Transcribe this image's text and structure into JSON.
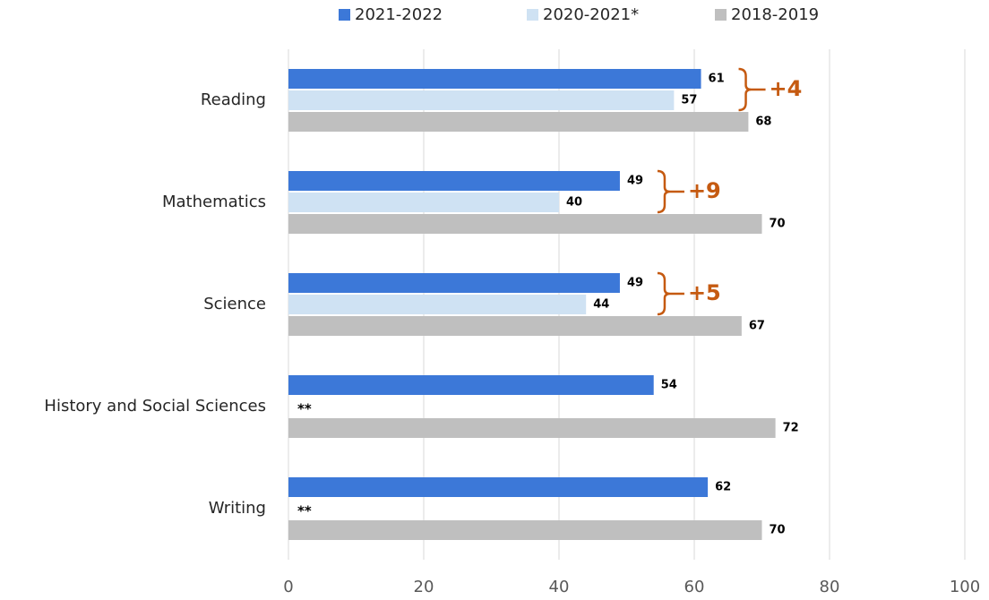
{
  "chart_data": {
    "type": "bar",
    "orientation": "horizontal",
    "categories": [
      "Reading",
      "Mathematics",
      "Science",
      "History and Social Sciences",
      "Writing"
    ],
    "series": [
      {
        "name": "2021-2022",
        "color": "#3c78d8",
        "values": [
          61,
          49,
          49,
          54,
          62
        ]
      },
      {
        "name": "2020-2021*",
        "color": "#cfe2f3",
        "values": [
          57,
          40,
          44,
          null,
          null
        ],
        "value_labels": [
          null,
          null,
          null,
          "**",
          "**"
        ]
      },
      {
        "name": "2018-2019",
        "color": "#bfbfbf",
        "values": [
          68,
          70,
          67,
          72,
          70
        ]
      }
    ],
    "xlim": [
      0,
      100
    ],
    "xticks": [
      0,
      20,
      40,
      60,
      80,
      100
    ],
    "grid": true,
    "legend": "top",
    "annotations": [
      {
        "category": 0,
        "text": "+4",
        "color": "#c55a11"
      },
      {
        "category": 1,
        "text": "+9",
        "color": "#c55a11"
      },
      {
        "category": 2,
        "text": "+5",
        "color": "#c55a11"
      }
    ]
  }
}
